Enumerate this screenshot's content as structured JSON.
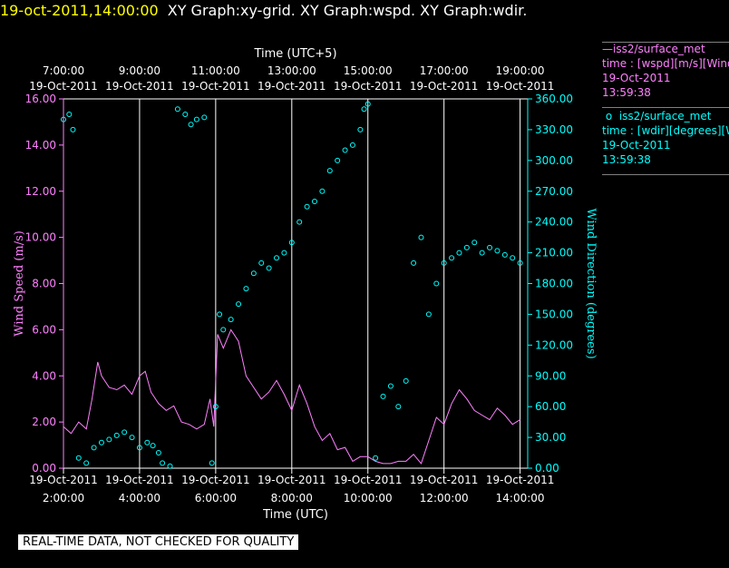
{
  "header": {
    "timestamp": "19-oct-2011,14:00:00",
    "titles": "XY Graph:xy-grid.  XY Graph:wspd.  XY Graph:wdir."
  },
  "legend": [
    {
      "marker": "—",
      "name": "iss2/surface_met",
      "var": "time : [wspd][m/s][Wind",
      "date": "19-Oct-2011",
      "time": "13:59:38",
      "color": "#ff80ff"
    },
    {
      "marker": "o",
      "name": "iss2/surface_met",
      "var": "time : [wdir][degrees][W",
      "date": "19-Oct-2011",
      "time": "13:59:38",
      "color": "#00ffff"
    }
  ],
  "footer": {
    "quality_note": "REAL-TIME DATA, NOT CHECKED FOR QUALITY"
  },
  "chart_data": {
    "type": "line",
    "top_axis_label": "Time (UTC+5)",
    "xlabel": "Time (UTC)",
    "ylabel_left": "Wind Speed (m/s)",
    "ylabel_right": "Wind Direction (degrees)",
    "xlim": [
      2,
      14.2
    ],
    "ylim_left": [
      0,
      16
    ],
    "ylim_right": [
      0,
      360
    ],
    "grid": "vertical",
    "x_ticks": [
      {
        "x": 2,
        "top_time": "7:00:00",
        "bottom_time": "2:00:00",
        "date": "19-Oct-2011"
      },
      {
        "x": 4,
        "top_time": "9:00:00",
        "bottom_time": "4:00:00",
        "date": "19-Oct-2011"
      },
      {
        "x": 6,
        "top_time": "11:00:00",
        "bottom_time": "6:00:00",
        "date": "19-Oct-2011"
      },
      {
        "x": 8,
        "top_time": "13:00:00",
        "bottom_time": "8:00:00",
        "date": "19-Oct-2011"
      },
      {
        "x": 10,
        "top_time": "15:00:00",
        "bottom_time": "10:00:00",
        "date": "19-Oct-2011"
      },
      {
        "x": 12,
        "top_time": "17:00:00",
        "bottom_time": "12:00:00",
        "date": "19-Oct-2011"
      },
      {
        "x": 14,
        "top_time": "19:00:00",
        "bottom_time": "14:00:00",
        "date": "19-Oct-2011"
      }
    ],
    "y_ticks_left": [
      "0.00",
      "2.00",
      "4.00",
      "6.00",
      "8.00",
      "10.00",
      "12.00",
      "14.00",
      "16.00"
    ],
    "y_ticks_right": [
      "0.00",
      "30.00",
      "60.00",
      "90.00",
      "120.00",
      "150.00",
      "180.00",
      "210.00",
      "240.00",
      "270.00",
      "300.00",
      "330.00",
      "360.00"
    ],
    "series": [
      {
        "name": "iss2/surface_met",
        "axis": "left",
        "style": "line",
        "color": "#ff80ff",
        "x": [
          2.0,
          2.2,
          2.4,
          2.6,
          2.75,
          2.9,
          3.0,
          3.2,
          3.4,
          3.6,
          3.8,
          4.0,
          4.15,
          4.3,
          4.5,
          4.7,
          4.9,
          5.1,
          5.3,
          5.5,
          5.7,
          5.85,
          5.95,
          6.05,
          6.2,
          6.4,
          6.6,
          6.8,
          7.0,
          7.2,
          7.4,
          7.6,
          7.8,
          8.0,
          8.2,
          8.4,
          8.6,
          8.8,
          9.0,
          9.2,
          9.4,
          9.6,
          9.8,
          10.0,
          10.2,
          10.4,
          10.6,
          10.8,
          11.0,
          11.2,
          11.4,
          11.6,
          11.8,
          12.0,
          12.2,
          12.4,
          12.6,
          12.8,
          13.0,
          13.2,
          13.4,
          13.6,
          13.8,
          14.0
        ],
        "y": [
          1.8,
          1.5,
          2.0,
          1.7,
          3.0,
          4.6,
          4.0,
          3.5,
          3.4,
          3.6,
          3.2,
          4.0,
          4.2,
          3.3,
          2.8,
          2.5,
          2.7,
          2.0,
          1.9,
          1.7,
          1.9,
          3.0,
          1.8,
          5.8,
          5.2,
          6.0,
          5.5,
          4.0,
          3.5,
          3.0,
          3.3,
          3.8,
          3.2,
          2.5,
          3.6,
          2.8,
          1.8,
          1.2,
          1.5,
          0.8,
          0.9,
          0.3,
          0.5,
          0.5,
          0.3,
          0.2,
          0.2,
          0.3,
          0.3,
          0.6,
          0.2,
          1.2,
          2.2,
          1.9,
          2.8,
          3.4,
          3.0,
          2.5,
          2.3,
          2.1,
          2.6,
          2.3,
          1.9,
          2.1
        ]
      },
      {
        "name": "iss2/surface_met",
        "axis": "right",
        "style": "points",
        "color": "#00ffff",
        "x": [
          2.0,
          2.15,
          2.25,
          2.4,
          2.6,
          2.8,
          3.0,
          3.2,
          3.4,
          3.6,
          3.8,
          4.0,
          4.2,
          4.35,
          4.5,
          4.6,
          4.8,
          5.0,
          5.2,
          5.35,
          5.5,
          5.7,
          5.9,
          6.0,
          6.1,
          6.2,
          6.4,
          6.6,
          6.8,
          7.0,
          7.2,
          7.4,
          7.6,
          7.8,
          8.0,
          8.2,
          8.4,
          8.6,
          8.8,
          9.0,
          9.2,
          9.4,
          9.6,
          9.8,
          9.9,
          10.0,
          10.2,
          10.4,
          10.6,
          10.8,
          11.0,
          11.2,
          11.4,
          11.6,
          11.8,
          12.0,
          12.2,
          12.4,
          12.6,
          12.8,
          13.0,
          13.2,
          13.4,
          13.6,
          13.8,
          14.0
        ],
        "y": [
          340,
          345,
          330,
          10,
          5,
          20,
          25,
          28,
          32,
          35,
          30,
          20,
          25,
          22,
          15,
          5,
          2,
          350,
          345,
          335,
          340,
          342,
          5,
          60,
          150,
          135,
          145,
          160,
          175,
          190,
          200,
          195,
          205,
          210,
          220,
          240,
          255,
          260,
          270,
          290,
          300,
          310,
          315,
          330,
          350,
          355,
          10,
          70,
          80,
          60,
          85,
          200,
          225,
          150,
          180,
          200,
          205,
          210,
          215,
          220,
          210,
          215,
          212,
          208,
          205,
          200
        ]
      }
    ]
  }
}
